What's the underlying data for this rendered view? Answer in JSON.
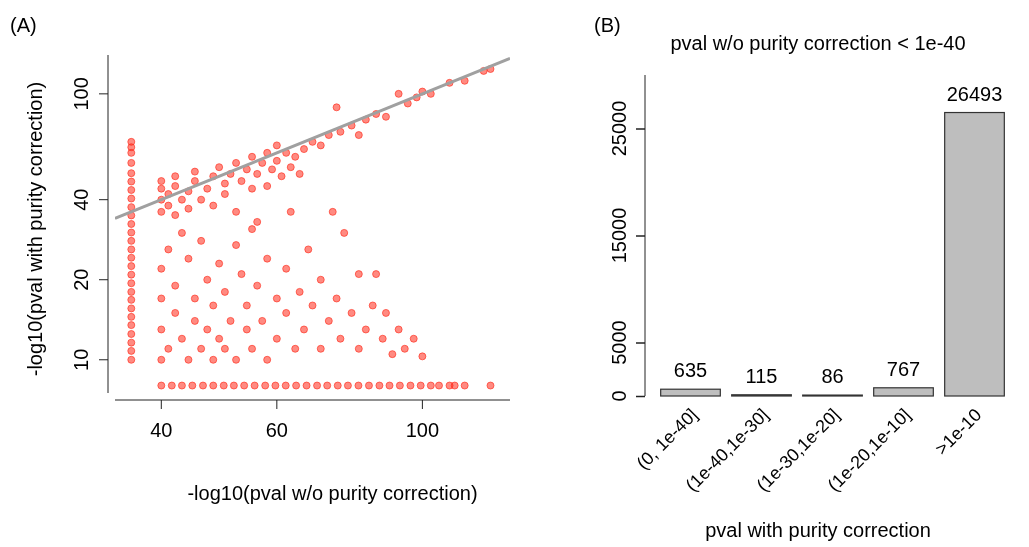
{
  "chart_data": [
    {
      "type": "scatter",
      "xlabel": "-log10(pval w/o purity correction)",
      "ylabel": "-log10(pval with purity correction)",
      "annotations": [
        "(A)"
      ],
      "log": "xy",
      "marker": "circle",
      "xlim": [
        34,
        136
      ],
      "ylim": [
        7.5,
        140
      ],
      "xticks": [
        40,
        60,
        100
      ],
      "yticks": [
        10,
        20,
        40,
        100
      ],
      "series": [
        {
          "color": "#ff2a1a",
          "x": [
            40,
            40,
            40,
            40,
            41,
            41,
            42,
            42,
            42,
            43,
            44,
            44,
            45,
            45,
            46,
            47,
            48,
            48,
            49,
            50,
            50,
            51,
            52,
            53,
            54,
            55,
            55,
            56,
            57,
            58,
            59,
            60,
            60,
            61,
            62,
            64,
            66,
            68,
            70,
            72,
            74,
            75,
            78,
            80,
            82,
            85,
            88,
            92,
            95,
            98,
            100,
            103,
            110,
            116,
            124,
            127,
            65,
            63,
            58
          ],
          "values": [
            36,
            40,
            44,
            47,
            38,
            42,
            35,
            45,
            49,
            40,
            37,
            43,
            47,
            51,
            40,
            44,
            49,
            38,
            53,
            46,
            42,
            50,
            55,
            47,
            52,
            58,
            44,
            50,
            55,
            60,
            52,
            64,
            56,
            49,
            60,
            58,
            62,
            66,
            64,
            70,
            89,
            72,
            76,
            70,
            80,
            84,
            82,
            100,
            92,
            97,
            102,
            100,
            110,
            112,
            122,
            124,
            50,
            53,
            45
          ]
        },
        {
          "color": "#ff2a1a",
          "x": [
            40,
            40,
            40,
            40,
            41,
            41,
            42,
            42,
            43,
            43,
            44,
            44,
            45,
            45,
            46,
            46,
            47,
            47,
            48,
            48,
            49,
            49,
            50,
            50,
            51,
            52,
            52,
            53,
            54,
            54,
            55,
            56,
            56,
            57,
            58,
            58,
            60,
            60,
            62,
            62,
            63,
            64,
            65,
            66,
            67,
            68,
            70,
            70,
            72,
            73,
            74,
            75,
            76,
            78,
            80,
            80,
            82,
            84,
            85,
            87,
            88,
            90,
            92,
            94,
            97,
            100,
            52,
            55
          ],
          "values": [
            10,
            13,
            17,
            22,
            26,
            11,
            15,
            19,
            12,
            30,
            10,
            24,
            14,
            17,
            11,
            28,
            20,
            13,
            16,
            10,
            12,
            23,
            18,
            11,
            14,
            27,
            10,
            21,
            13,
            16,
            11,
            19,
            33,
            14,
            24,
            10,
            12,
            17,
            15,
            22,
            36,
            11,
            18,
            13,
            26,
            16,
            11,
            20,
            14,
            36,
            17,
            12,
            30,
            15,
            11,
            21,
            13,
            16,
            21,
            12,
            15,
            10.5,
            13,
            11,
            12,
            10.3,
            36,
            31
          ]
        },
        {
          "color": "#ff2a1a",
          "x": [
            36,
            36,
            36,
            36,
            36,
            36,
            36,
            36,
            36,
            36,
            36,
            36,
            36,
            36,
            36,
            36,
            36,
            36,
            36,
            36,
            36,
            36,
            36,
            36,
            36,
            36,
            36
          ],
          "values": [
            10,
            10.8,
            11.6,
            12.5,
            13.5,
            14.5,
            15.6,
            16.8,
            18,
            19.4,
            20.9,
            22.5,
            24.2,
            26,
            28,
            30.1,
            32.4,
            34.9,
            37.5,
            40.4,
            43.5,
            46.8,
            50.3,
            55,
            60,
            63,
            66
          ]
        },
        {
          "color": "#ff2a1a",
          "x": [
            40,
            41.5,
            43,
            44.6,
            46.3,
            48,
            49.8,
            51.6,
            53.5,
            55.5,
            57.6,
            59.7,
            61.9,
            64.2,
            66.6,
            69.1,
            71.6,
            74.3,
            77,
            79.9,
            82.9,
            86,
            89.1,
            92.4,
            95.9,
            99.4,
            103,
            106,
            110,
            112,
            116,
            127
          ],
          "values": [
            8,
            8,
            8,
            8,
            8,
            8,
            8,
            8,
            8,
            8,
            8,
            8,
            8,
            8,
            8,
            8,
            8,
            8,
            8,
            8,
            8,
            8,
            8,
            8,
            8,
            8,
            8,
            8,
            8,
            8,
            8,
            8
          ]
        },
        {
          "type": "line",
          "marker": "none",
          "color": "#a0a0a0",
          "x": [
            34,
            136
          ],
          "values": [
            34,
            136
          ]
        }
      ]
    },
    {
      "type": "bar",
      "title": "pval w/o purity correction < 1e-40",
      "xlabel": "pval with purity correction",
      "annotations": [
        "(B)"
      ],
      "categories": [
        "(0, 1e-40]",
        "(1e-40,1e-30]",
        "(1e-30,1e-20]",
        "(1e-20,1e-10]",
        ">1e-10"
      ],
      "values": [
        635,
        115,
        86,
        767,
        26493
      ],
      "color": "#bebebe",
      "data_labels": true,
      "ylim": [
        0,
        30000
      ],
      "yticks": [
        0,
        5000,
        15000,
        25000
      ]
    }
  ]
}
